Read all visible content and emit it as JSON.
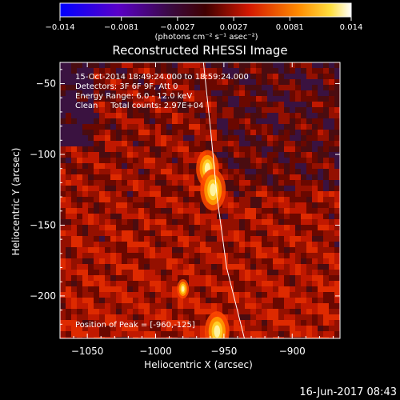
{
  "chart_data": {
    "type": "heatmap",
    "title": "Reconstructed RHESSI Image",
    "xlabel": "Heliocentric X (arcsec)",
    "ylabel": "Heliocentric Y (arcsec)",
    "xlim": [
      -1070,
      -865
    ],
    "ylim": [
      -230,
      -35
    ],
    "xticks": [
      -1050,
      -1000,
      -950,
      -900
    ],
    "yticks": [
      -50,
      -100,
      -150,
      -200
    ],
    "xtick_labels": [
      "−1050",
      "−1000",
      "−950",
      "−900"
    ],
    "ytick_labels": [
      "−50",
      "−100",
      "−150",
      "−200"
    ],
    "colorbar": {
      "range": [
        -0.014,
        0.014
      ],
      "ticks": [
        -0.014,
        -0.0081,
        -0.0027,
        0.0027,
        0.0081,
        0.014
      ],
      "tick_labels": [
        "−0.014",
        "−0.0081",
        "−0.0027",
        "0.0027",
        "0.0081",
        "0.014"
      ],
      "units_label": "(photons cm⁻² s⁻¹ asec⁻²)"
    },
    "sources": [
      {
        "x": -962,
        "y": -110,
        "strength": 0.0125
      },
      {
        "x": -958,
        "y": -125,
        "strength": 0.014
      },
      {
        "x": -955,
        "y": -225,
        "strength": 0.0135
      },
      {
        "x": -980,
        "y": -195,
        "strength": 0.0065
      }
    ],
    "peak": {
      "x": -960,
      "y": -125
    },
    "limb_curve": [
      [
        -965,
        -35
      ],
      [
        -960,
        -80
      ],
      [
        -955,
        -130
      ],
      [
        -948,
        -180
      ],
      [
        -935,
        -230
      ]
    ],
    "info_lines": [
      "15-Oct-2014 18:49:24.000 to 18:59:24.000",
      "Detectors: 3F 6F 9F, Att 0",
      "Energy Range: 6.0 - 12.0 keV",
      "Clean     Total counts: 2.97E+04"
    ],
    "peak_label": "Position of Peak = [-960,-125]"
  },
  "footer": {
    "date": "16-Jun-2017 08:43"
  }
}
